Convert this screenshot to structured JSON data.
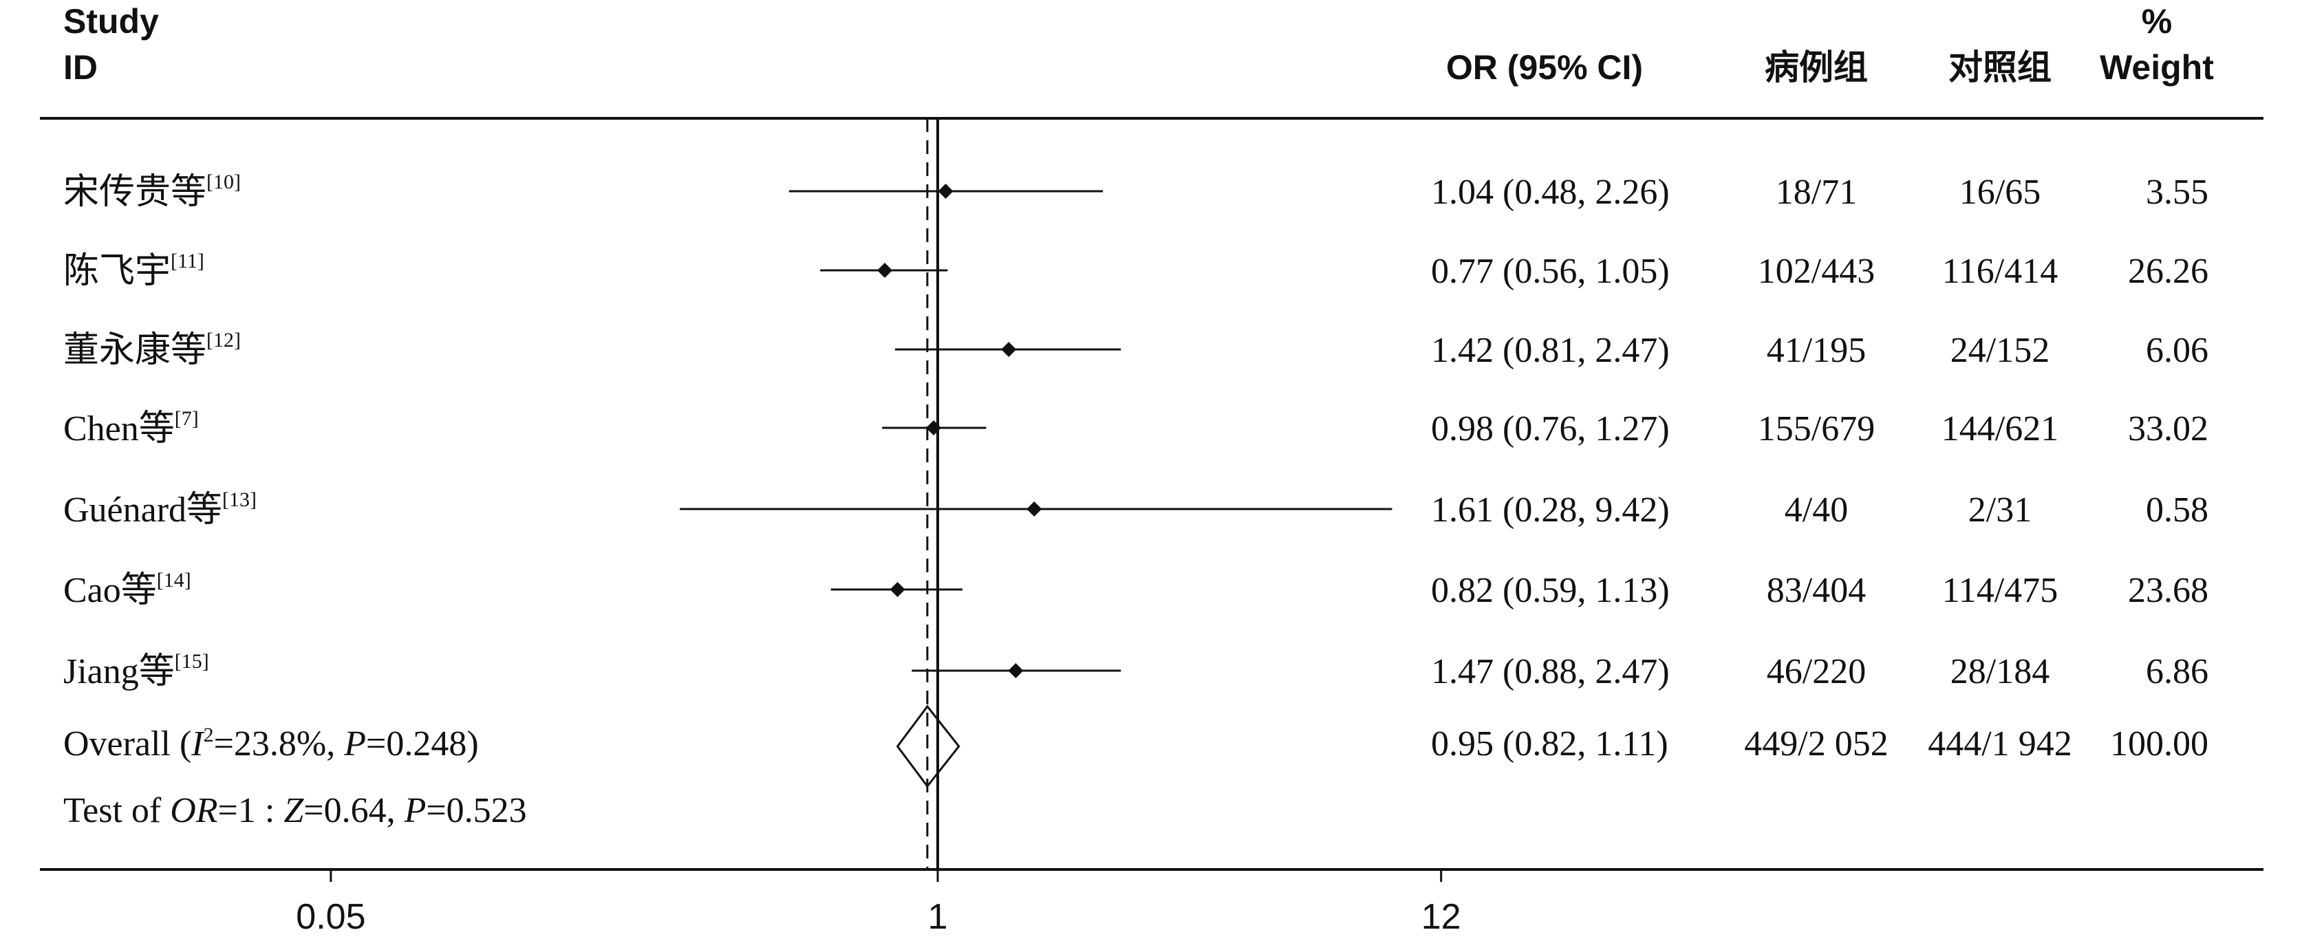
{
  "chart_data": {
    "type": "forest",
    "x_scale": "log",
    "ticks": [
      {
        "label": "0.05",
        "value": 0.05
      },
      {
        "label": "1",
        "value": 1
      },
      {
        "label": "12",
        "value": 12
      }
    ],
    "header": {
      "study_line1": "Study",
      "study_line2": "ID",
      "or_ci": "OR (95% CI)",
      "case_group": "病例组",
      "control_group": "对照组",
      "weight_line1": "%",
      "weight_line2": "Weight"
    },
    "studies": [
      {
        "name": "宋传贵等",
        "ref": "[10]",
        "or": 1.04,
        "lo": 0.48,
        "hi": 2.26,
        "or_ci_text": "1.04 (0.48, 2.26)",
        "cases": "18/71",
        "controls": "16/65",
        "weight": "3.55"
      },
      {
        "name": "陈飞宇",
        "ref": "[11]",
        "or": 0.77,
        "lo": 0.56,
        "hi": 1.05,
        "or_ci_text": "0.77 (0.56, 1.05)",
        "cases": "102/443",
        "controls": "116/414",
        "weight": "26.26"
      },
      {
        "name": "董永康等",
        "ref": "[12]",
        "or": 1.42,
        "lo": 0.81,
        "hi": 2.47,
        "or_ci_text": "1.42 (0.81, 2.47)",
        "cases": "41/195",
        "controls": "24/152",
        "weight": "6.06"
      },
      {
        "name": "Chen等",
        "ref": "[7]",
        "or": 0.98,
        "lo": 0.76,
        "hi": 1.27,
        "or_ci_text": "0.98 (0.76, 1.27)",
        "cases": "155/679",
        "controls": "144/621",
        "weight": "33.02"
      },
      {
        "name": "Guénard等",
        "ref": "[13]",
        "or": 1.61,
        "lo": 0.28,
        "hi": 9.42,
        "or_ci_text": "1.61 (0.28, 9.42)",
        "cases": "4/40",
        "controls": "2/31",
        "weight": "0.58"
      },
      {
        "name": "Cao等",
        "ref": "[14]",
        "or": 0.82,
        "lo": 0.59,
        "hi": 1.13,
        "or_ci_text": "0.82 (0.59, 1.13)",
        "cases": "83/404",
        "controls": "114/475",
        "weight": "23.68"
      },
      {
        "name": "Jiang等",
        "ref": "[15]",
        "or": 1.47,
        "lo": 0.88,
        "hi": 2.47,
        "or_ci_text": "1.47 (0.88, 2.47)",
        "cases": "46/220",
        "controls": "28/184",
        "weight": "6.86"
      }
    ],
    "overall": {
      "label": "Overall",
      "i2_symbol": "I",
      "i2_sup": "2",
      "i2_value": "=23.8%, ",
      "p_symbol": "P",
      "p_value": "=0.248",
      "or": 0.95,
      "lo": 0.82,
      "hi": 1.11,
      "or_ci_text": "0.95 (0.82, 1.11)",
      "cases": "449/2 052",
      "controls": "444/1 942",
      "weight": "100.00"
    },
    "test": {
      "prefix": "Test of ",
      "or_symbol": "OR",
      "eq": "=1 : ",
      "z_symbol": "Z",
      "z_value": "=0.64, ",
      "p_symbol": "P",
      "p_value": "=0.523"
    }
  }
}
